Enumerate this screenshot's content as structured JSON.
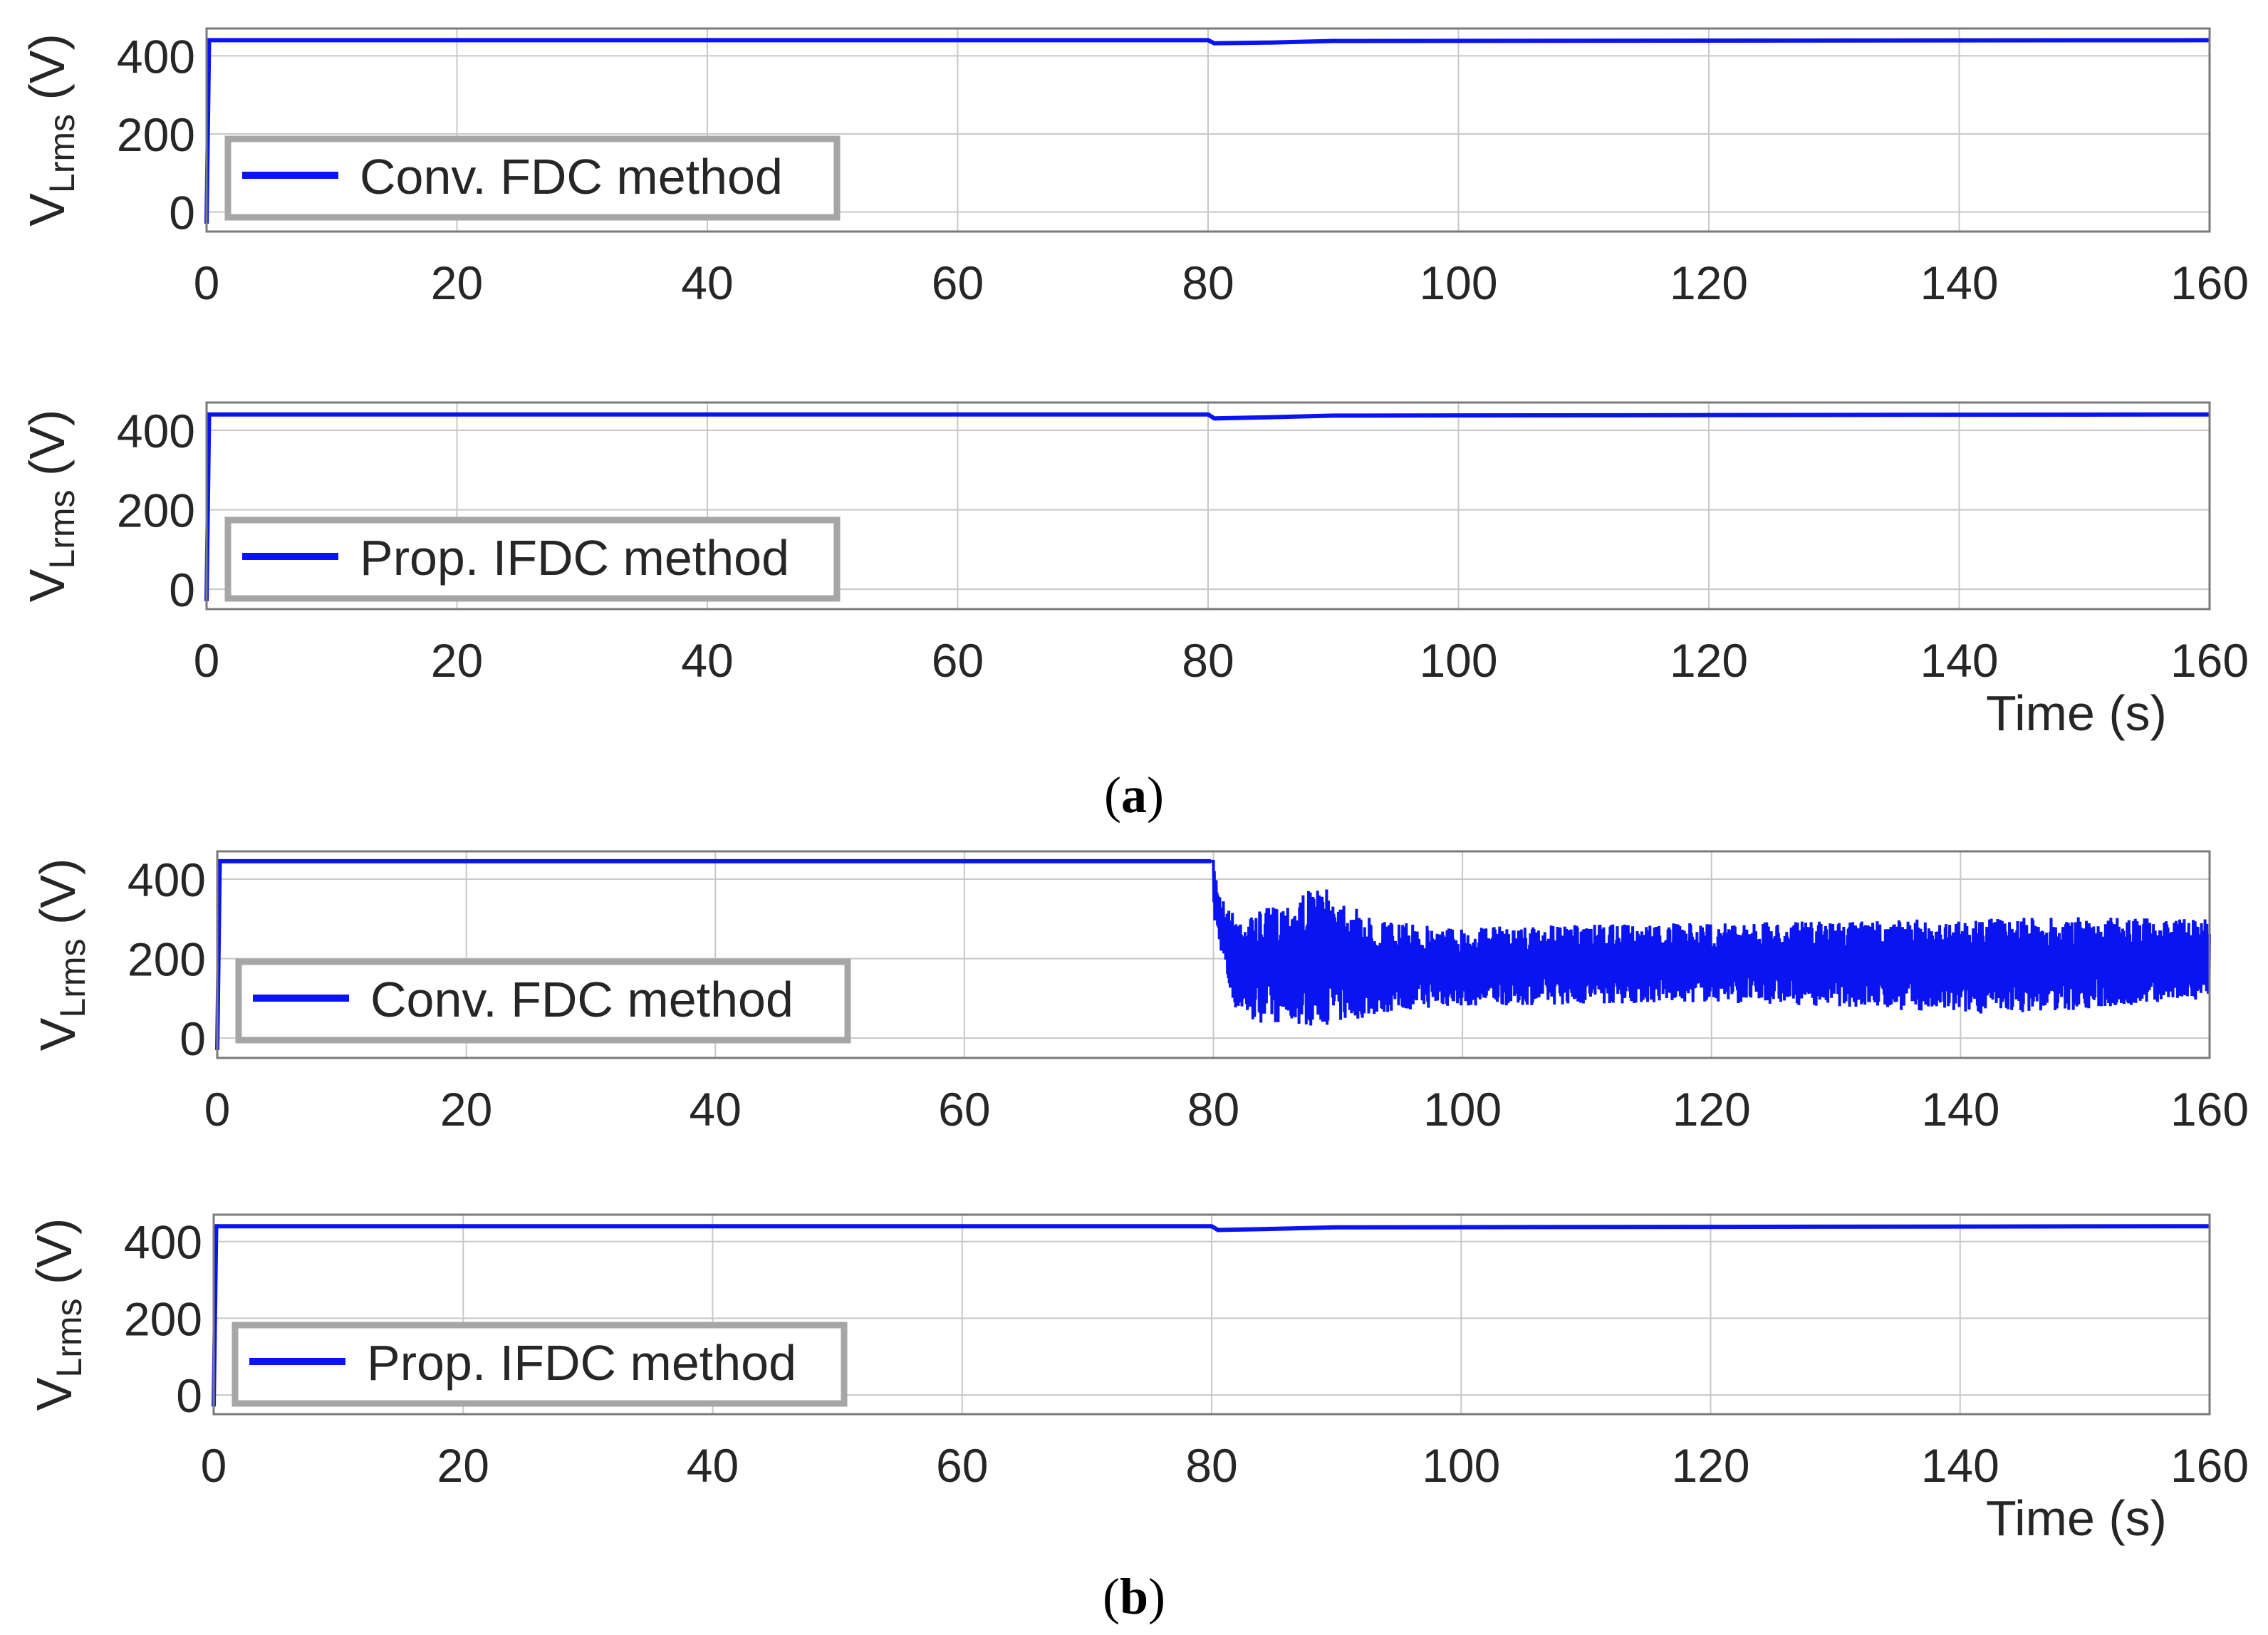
{
  "colors": {
    "series": "#0a14f0",
    "grid": "#c8c8c8",
    "axes": "#7a7a7a",
    "legend_border": "#a6a6a6"
  },
  "captions": [
    {
      "open": "(",
      "letter": "a",
      "close": ")"
    },
    {
      "open": "(",
      "letter": "b",
      "close": ")"
    }
  ],
  "chart_data": [
    {
      "type": "line",
      "ylabel": {
        "main": "V",
        "sub": "Lrms",
        "unit": " (V)"
      },
      "xlabel": "",
      "xlim": [
        0,
        160
      ],
      "ylim": [
        -50,
        470
      ],
      "xticks": [
        0,
        20,
        40,
        60,
        80,
        100,
        120,
        140,
        160
      ],
      "yticks": [
        0,
        200,
        400
      ],
      "grid": true,
      "legend_placement": "bottom-left",
      "series": [
        {
          "name": "Conv. FDC method",
          "x": [
            0,
            0.2,
            1,
            80,
            80.5,
            85,
            90,
            160
          ],
          "y": [
            -30,
            440,
            440,
            440,
            432,
            434,
            438,
            440
          ]
        }
      ]
    },
    {
      "type": "line",
      "ylabel": {
        "main": "V",
        "sub": "Lrms",
        "unit": " (V)"
      },
      "xlabel": "Time (s)",
      "xlim": [
        0,
        160
      ],
      "ylim": [
        -50,
        470
      ],
      "xticks": [
        0,
        20,
        40,
        60,
        80,
        100,
        120,
        140,
        160
      ],
      "yticks": [
        0,
        200,
        400
      ],
      "grid": true,
      "legend_placement": "bottom-left",
      "series": [
        {
          "name": "Prop. IFDC method",
          "x": [
            0,
            0.2,
            1,
            80,
            80.5,
            85,
            90,
            160
          ],
          "y": [
            -30,
            440,
            440,
            440,
            430,
            433,
            437,
            440
          ]
        }
      ]
    },
    {
      "type": "line",
      "ylabel": {
        "main": "V",
        "sub": "Lrms",
        "unit": " (V)"
      },
      "xlabel": "",
      "xlim": [
        0,
        160
      ],
      "ylim": [
        -50,
        470
      ],
      "xticks": [
        0,
        20,
        40,
        60,
        80,
        100,
        120,
        140,
        160
      ],
      "yticks": [
        0,
        200,
        400
      ],
      "grid": true,
      "legend_placement": "bottom-left",
      "series": [
        {
          "name": "Conv. FDC method",
          "x": [
            0,
            0.2,
            1,
            79.8
          ],
          "y": [
            -30,
            445,
            445,
            445
          ]
        }
      ],
      "oscillation_envelope": {
        "x": [
          80,
          80.6,
          81.5,
          83,
          86,
          88,
          90,
          92,
          95,
          100,
          110,
          120,
          130,
          140,
          150,
          160
        ],
        "upper": [
          445,
          360,
          320,
          310,
          350,
          380,
          370,
          310,
          290,
          280,
          285,
          290,
          295,
          300,
          305,
          300
        ],
        "lower": [
          300,
          220,
          80,
          40,
          35,
          30,
          35,
          50,
          70,
          80,
          85,
          90,
          80,
          60,
          70,
          100
        ]
      }
    },
    {
      "type": "line",
      "ylabel": {
        "main": "V",
        "sub": "Lrms",
        "unit": " (V)"
      },
      "xlabel": "Time (s)",
      "xlim": [
        0,
        160
      ],
      "ylim": [
        -50,
        470
      ],
      "xticks": [
        0,
        20,
        40,
        60,
        80,
        100,
        120,
        140,
        160
      ],
      "yticks": [
        0,
        200,
        400
      ],
      "grid": true,
      "legend_placement": "bottom-left",
      "series": [
        {
          "name": "Prop. IFDC method",
          "x": [
            0,
            0.2,
            1,
            80,
            80.5,
            85,
            90,
            160
          ],
          "y": [
            -30,
            440,
            440,
            440,
            430,
            433,
            437,
            440
          ]
        }
      ]
    }
  ]
}
